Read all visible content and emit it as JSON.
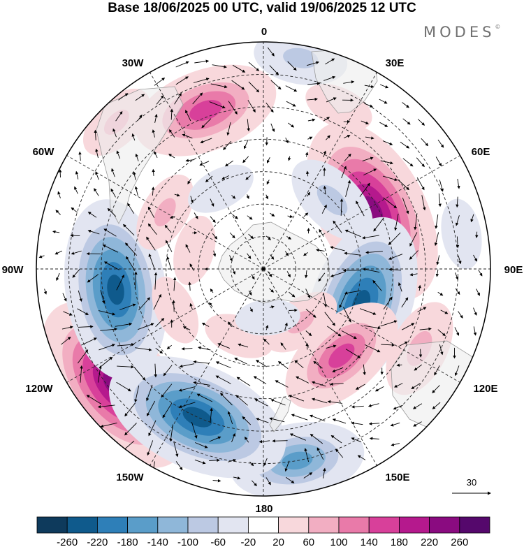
{
  "title": "Base 18/06/2025 00 UTC, valid 19/06/2025 12 UTC",
  "brand": "MODES",
  "brand_mark": "©",
  "longitude_labels": {
    "lon_0": "0",
    "lon_30e": "30E",
    "lon_60e": "60E",
    "lon_90e": "90E",
    "lon_120e": "120E",
    "lon_150e": "150E",
    "lon_180": "180",
    "lon_150w": "150W",
    "lon_120w": "120W",
    "lon_90w": "90W",
    "lon_60w": "60W",
    "lon_30w": "30W"
  },
  "vector_reference": "30",
  "colorbar": {
    "ticks": [
      "-260",
      "-220",
      "-180",
      "-140",
      "-100",
      "-60",
      "-20",
      "20",
      "60",
      "100",
      "140",
      "180",
      "220",
      "260"
    ],
    "colors": [
      "#0e3a5c",
      "#0f5a8c",
      "#2e7fb8",
      "#5a9dc9",
      "#8fb7d9",
      "#bcc9e3",
      "#e2e5f1",
      "#ffffff",
      "#f8d8dc",
      "#f2aec2",
      "#e97aa9",
      "#d8409a",
      "#b5198d",
      "#8a0b80",
      "#55086c"
    ]
  },
  "anomalies": [
    {
      "lon": 62,
      "lat": -52,
      "value": 250
    },
    {
      "lon": 110,
      "lat": -58,
      "value": -230
    },
    {
      "lon": 138,
      "lat": -54,
      "value": 150
    },
    {
      "lon": 117,
      "lat": -36,
      "value": 90
    },
    {
      "lon": 170,
      "lat": -30,
      "value": -150
    },
    {
      "lon": -128,
      "lat": -32,
      "value": 250
    },
    {
      "lon": -156,
      "lat": -40,
      "value": -240
    },
    {
      "lon": -98,
      "lat": -44,
      "value": -230
    },
    {
      "lon": -20,
      "lat": -38,
      "value": 170
    },
    {
      "lon": -45,
      "lat": -26,
      "value": 60
    },
    {
      "lon": 10,
      "lat": -24,
      "value": -80
    },
    {
      "lon": 45,
      "lat": -60,
      "value": -90
    },
    {
      "lon": -60,
      "lat": -55,
      "value": 60
    },
    {
      "lon": -28,
      "lat": -62,
      "value": -40
    },
    {
      "lon": 25,
      "lat": -35,
      "value": 40
    },
    {
      "lon": 145,
      "lat": -70,
      "value": 60
    },
    {
      "lon": -160,
      "lat": -68,
      "value": 40
    },
    {
      "lon": 80,
      "lat": -28,
      "value": -40
    },
    {
      "lon": -75,
      "lat": -68,
      "value": 40
    },
    {
      "lon": 175,
      "lat": -75,
      "value": -30
    },
    {
      "lon": -115,
      "lat": -60,
      "value": 40
    }
  ]
}
